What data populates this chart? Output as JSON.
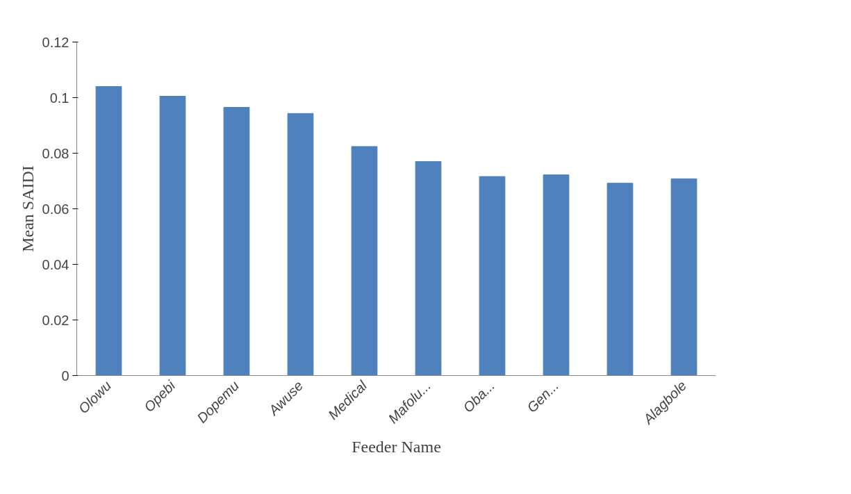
{
  "chart_data": {
    "type": "bar",
    "xlabel": "Feeder Name",
    "ylabel": "Mean SAIDI",
    "categories": [
      "Olowu",
      "Opebi",
      "Dopemu",
      "Awuse",
      "Medical",
      "Mafolu...",
      "Oba...",
      "Gen...",
      null,
      "Alagbole"
    ],
    "values": [
      0.104,
      0.1005,
      0.0965,
      0.0943,
      0.0824,
      0.077,
      0.0716,
      0.0722,
      0.0692,
      0.0708
    ],
    "color": "#4f81bd",
    "ylim": [
      0,
      0.12
    ],
    "yticks": [
      0,
      0.02,
      0.04,
      0.06,
      0.08,
      0.1,
      0.12
    ],
    "grid": false
  }
}
